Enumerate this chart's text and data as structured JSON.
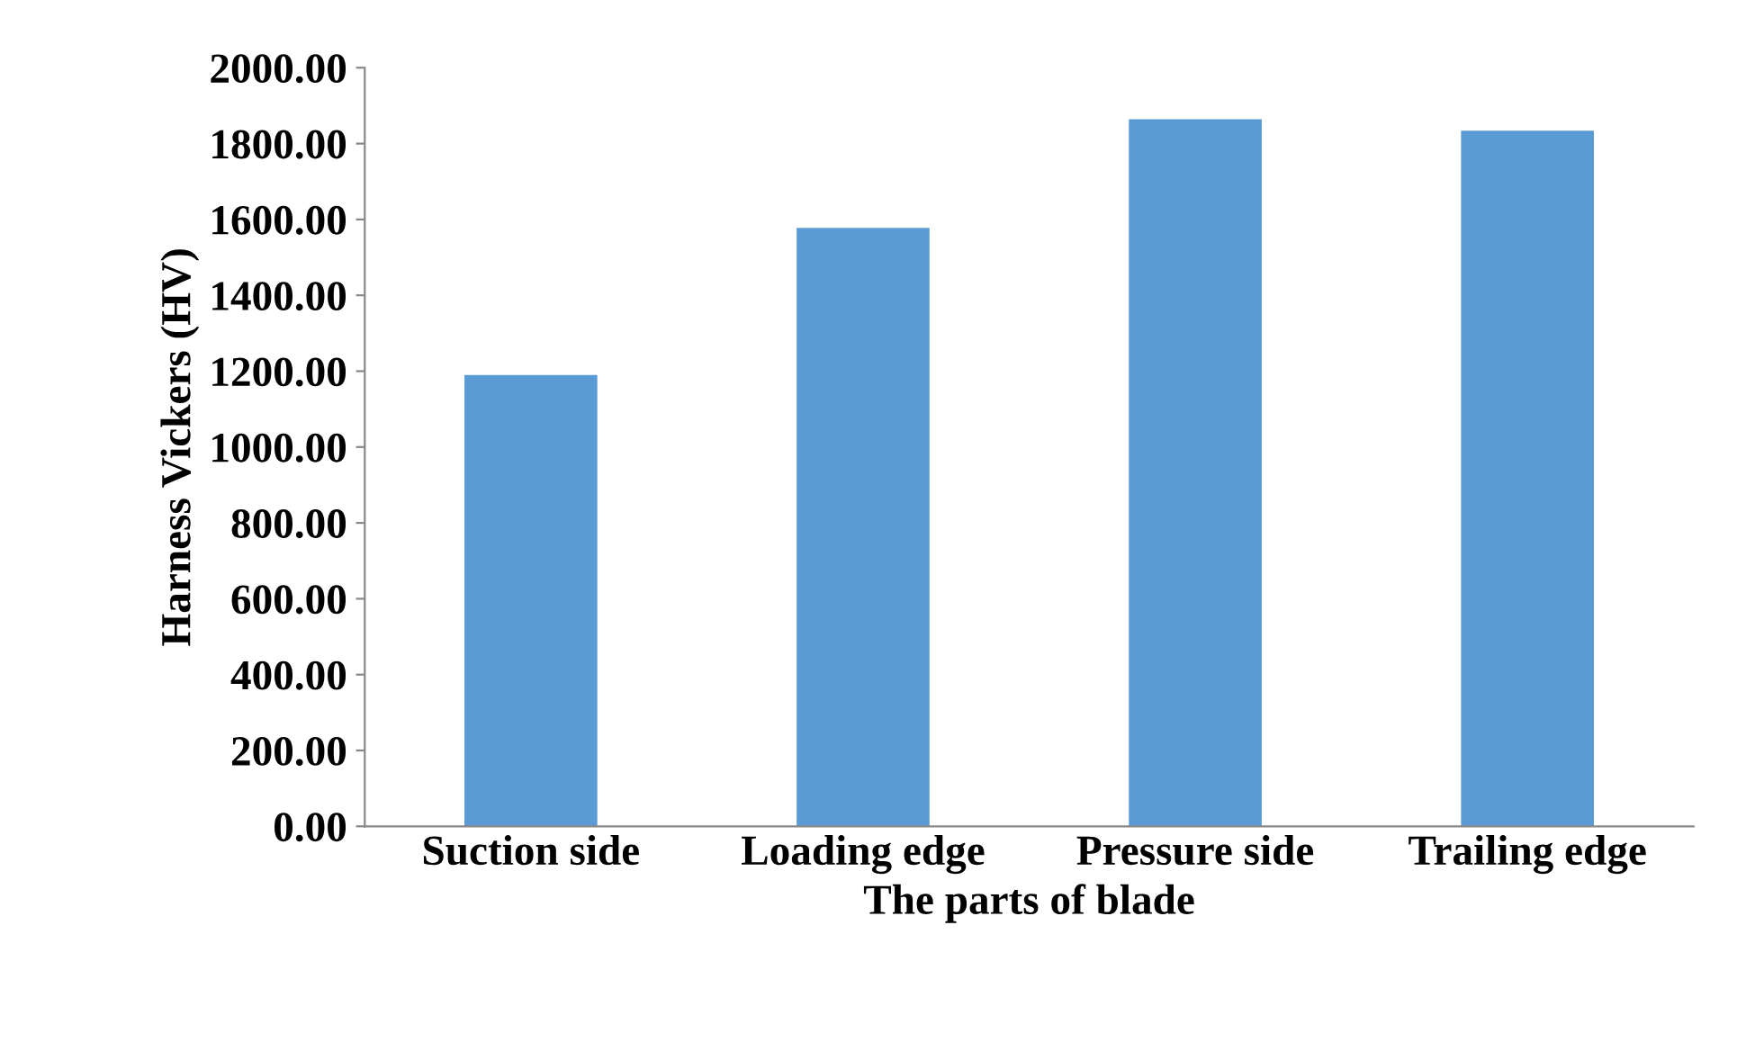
{
  "chart_data": {
    "type": "bar",
    "xlabel": "The parts of blade",
    "ylabel": "Harness Vickers (HV)",
    "categories": [
      "Suction side",
      "Loading edge",
      "Pressure side",
      "Trailing edge"
    ],
    "values": [
      1190,
      1578,
      1864,
      1834
    ],
    "color": "#5b9bd5",
    "ylim": [
      0,
      2000
    ],
    "yticks": [
      {
        "value": 0,
        "label": "0.00"
      },
      {
        "value": 200,
        "label": "200.00"
      },
      {
        "value": 400,
        "label": "400.00"
      },
      {
        "value": 600,
        "label": "600.00"
      },
      {
        "value": 800,
        "label": "800.00"
      },
      {
        "value": 1000,
        "label": "1000.00"
      },
      {
        "value": 1200,
        "label": "1200.00"
      },
      {
        "value": 1400,
        "label": "1400.00"
      },
      {
        "value": 1600,
        "label": "1600.00"
      },
      {
        "value": 1800,
        "label": "1800.00"
      },
      {
        "value": 2000,
        "label": "2000.00"
      }
    ],
    "grid": false
  }
}
